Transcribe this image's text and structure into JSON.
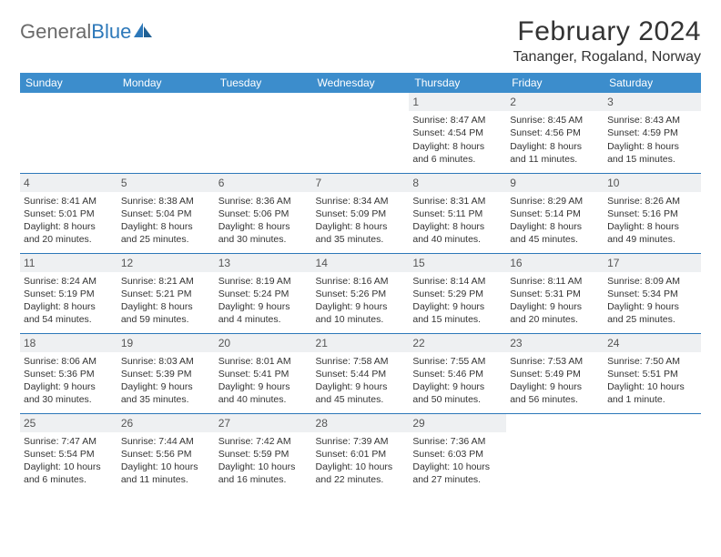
{
  "brand": {
    "part1": "General",
    "part2": "Blue"
  },
  "title": "February 2024",
  "location": "Tananger, Rogaland, Norway",
  "colors": {
    "header_bg": "#3c8dcc",
    "border": "#2d78b9",
    "daynum_bg": "#eef0f2",
    "text": "#333333",
    "logo_gray": "#6a6a6a",
    "logo_blue": "#2d78b9",
    "page_bg": "#ffffff"
  },
  "typography": {
    "title_fontsize": 30,
    "location_fontsize": 16,
    "dayhead_fontsize": 12,
    "cell_fontsize": 10.5
  },
  "dayNames": [
    "Sunday",
    "Monday",
    "Tuesday",
    "Wednesday",
    "Thursday",
    "Friday",
    "Saturday"
  ],
  "weeks": [
    [
      {
        "n": "",
        "t": ""
      },
      {
        "n": "",
        "t": ""
      },
      {
        "n": "",
        "t": ""
      },
      {
        "n": "",
        "t": ""
      },
      {
        "n": "1",
        "t": "Sunrise: 8:47 AM\nSunset: 4:54 PM\nDaylight: 8 hours and 6 minutes."
      },
      {
        "n": "2",
        "t": "Sunrise: 8:45 AM\nSunset: 4:56 PM\nDaylight: 8 hours and 11 minutes."
      },
      {
        "n": "3",
        "t": "Sunrise: 8:43 AM\nSunset: 4:59 PM\nDaylight: 8 hours and 15 minutes."
      }
    ],
    [
      {
        "n": "4",
        "t": "Sunrise: 8:41 AM\nSunset: 5:01 PM\nDaylight: 8 hours and 20 minutes."
      },
      {
        "n": "5",
        "t": "Sunrise: 8:38 AM\nSunset: 5:04 PM\nDaylight: 8 hours and 25 minutes."
      },
      {
        "n": "6",
        "t": "Sunrise: 8:36 AM\nSunset: 5:06 PM\nDaylight: 8 hours and 30 minutes."
      },
      {
        "n": "7",
        "t": "Sunrise: 8:34 AM\nSunset: 5:09 PM\nDaylight: 8 hours and 35 minutes."
      },
      {
        "n": "8",
        "t": "Sunrise: 8:31 AM\nSunset: 5:11 PM\nDaylight: 8 hours and 40 minutes."
      },
      {
        "n": "9",
        "t": "Sunrise: 8:29 AM\nSunset: 5:14 PM\nDaylight: 8 hours and 45 minutes."
      },
      {
        "n": "10",
        "t": "Sunrise: 8:26 AM\nSunset: 5:16 PM\nDaylight: 8 hours and 49 minutes."
      }
    ],
    [
      {
        "n": "11",
        "t": "Sunrise: 8:24 AM\nSunset: 5:19 PM\nDaylight: 8 hours and 54 minutes."
      },
      {
        "n": "12",
        "t": "Sunrise: 8:21 AM\nSunset: 5:21 PM\nDaylight: 8 hours and 59 minutes."
      },
      {
        "n": "13",
        "t": "Sunrise: 8:19 AM\nSunset: 5:24 PM\nDaylight: 9 hours and 4 minutes."
      },
      {
        "n": "14",
        "t": "Sunrise: 8:16 AM\nSunset: 5:26 PM\nDaylight: 9 hours and 10 minutes."
      },
      {
        "n": "15",
        "t": "Sunrise: 8:14 AM\nSunset: 5:29 PM\nDaylight: 9 hours and 15 minutes."
      },
      {
        "n": "16",
        "t": "Sunrise: 8:11 AM\nSunset: 5:31 PM\nDaylight: 9 hours and 20 minutes."
      },
      {
        "n": "17",
        "t": "Sunrise: 8:09 AM\nSunset: 5:34 PM\nDaylight: 9 hours and 25 minutes."
      }
    ],
    [
      {
        "n": "18",
        "t": "Sunrise: 8:06 AM\nSunset: 5:36 PM\nDaylight: 9 hours and 30 minutes."
      },
      {
        "n": "19",
        "t": "Sunrise: 8:03 AM\nSunset: 5:39 PM\nDaylight: 9 hours and 35 minutes."
      },
      {
        "n": "20",
        "t": "Sunrise: 8:01 AM\nSunset: 5:41 PM\nDaylight: 9 hours and 40 minutes."
      },
      {
        "n": "21",
        "t": "Sunrise: 7:58 AM\nSunset: 5:44 PM\nDaylight: 9 hours and 45 minutes."
      },
      {
        "n": "22",
        "t": "Sunrise: 7:55 AM\nSunset: 5:46 PM\nDaylight: 9 hours and 50 minutes."
      },
      {
        "n": "23",
        "t": "Sunrise: 7:53 AM\nSunset: 5:49 PM\nDaylight: 9 hours and 56 minutes."
      },
      {
        "n": "24",
        "t": "Sunrise: 7:50 AM\nSunset: 5:51 PM\nDaylight: 10 hours and 1 minute."
      }
    ],
    [
      {
        "n": "25",
        "t": "Sunrise: 7:47 AM\nSunset: 5:54 PM\nDaylight: 10 hours and 6 minutes."
      },
      {
        "n": "26",
        "t": "Sunrise: 7:44 AM\nSunset: 5:56 PM\nDaylight: 10 hours and 11 minutes."
      },
      {
        "n": "27",
        "t": "Sunrise: 7:42 AM\nSunset: 5:59 PM\nDaylight: 10 hours and 16 minutes."
      },
      {
        "n": "28",
        "t": "Sunrise: 7:39 AM\nSunset: 6:01 PM\nDaylight: 10 hours and 22 minutes."
      },
      {
        "n": "29",
        "t": "Sunrise: 7:36 AM\nSunset: 6:03 PM\nDaylight: 10 hours and 27 minutes."
      },
      {
        "n": "",
        "t": ""
      },
      {
        "n": "",
        "t": ""
      }
    ]
  ]
}
